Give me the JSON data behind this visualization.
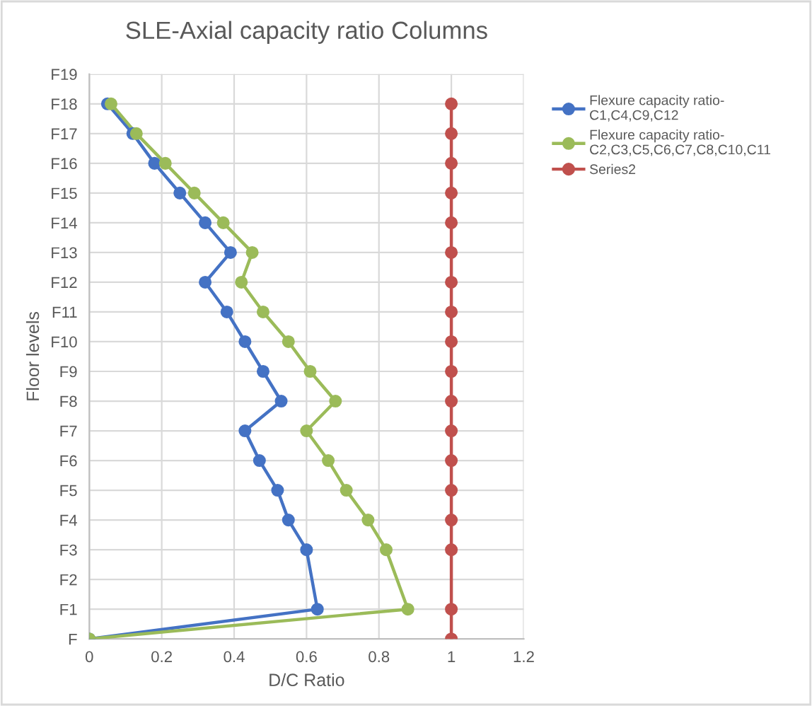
{
  "chart_data": {
    "type": "line",
    "orientation": "horizontal",
    "title": "SLE-Axial capacity ratio Columns",
    "xlabel": "D/C Ratio",
    "ylabel": "Floor levels",
    "categories": [
      "F19",
      "F18",
      "F17",
      "F16",
      "F15",
      "F14",
      "F13",
      "F12",
      "F11",
      "F10",
      "F9",
      "F8",
      "F7",
      "F6",
      "F5",
      "F4",
      "F3",
      "F2",
      "F1",
      "F"
    ],
    "series": [
      {
        "name": "Flexure capacity ratio-C1,C4,C9,C12",
        "color": "#4472c4",
        "values": [
          null,
          0.05,
          0.12,
          0.18,
          0.25,
          0.32,
          0.39,
          0.32,
          0.38,
          0.43,
          0.48,
          0.53,
          0.43,
          0.47,
          0.52,
          0.55,
          0.6,
          null,
          0.63,
          0
        ]
      },
      {
        "name": "Flexure capacity ratio-C2,C3,C5,C6,C7,C8,C10,C11",
        "color": "#9bbb59",
        "values": [
          null,
          0.06,
          0.13,
          0.21,
          0.29,
          0.37,
          0.45,
          0.42,
          0.48,
          0.55,
          0.61,
          0.68,
          0.6,
          0.66,
          0.71,
          0.77,
          0.82,
          null,
          0.88,
          0
        ]
      },
      {
        "name": "Series2",
        "color": "#c0504d",
        "values": [
          null,
          1,
          1,
          1,
          1,
          1,
          1,
          1,
          1,
          1,
          1,
          1,
          1,
          1,
          1,
          1,
          1,
          null,
          1,
          1
        ]
      }
    ],
    "xlim": [
      0,
      1.2
    ],
    "xticks": [
      0,
      0.2,
      0.4,
      0.6,
      0.8,
      1,
      1.2
    ],
    "grid": true,
    "legend": "right",
    "marker": "circle",
    "line_style": "solid"
  }
}
